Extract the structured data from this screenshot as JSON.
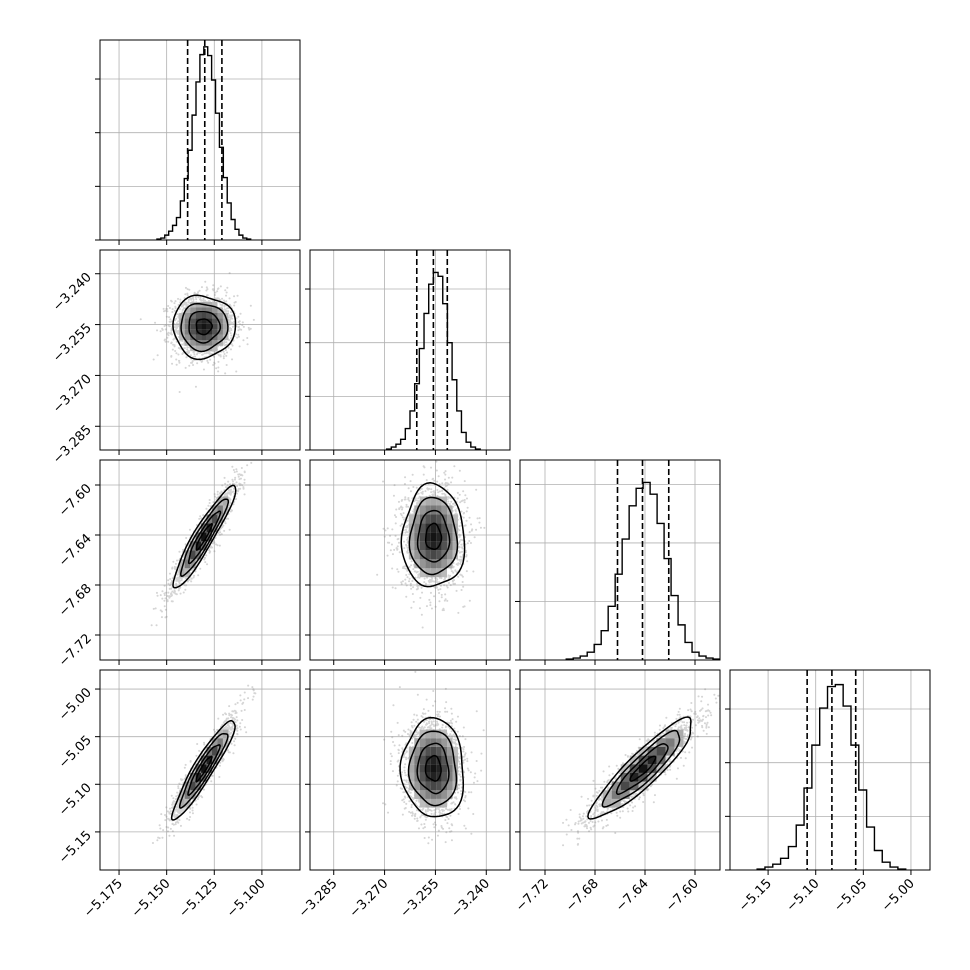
{
  "chart_data": {
    "type": "corner",
    "title": "",
    "grid": true,
    "colors": {
      "line": "#000000",
      "grid": "#b0b0b0",
      "points": "#888888",
      "background": "#ffffff"
    },
    "parameters": [
      {
        "xlim": [
          -5.185,
          -5.08
        ],
        "ticks": [
          -5.175,
          -5.15,
          -5.125,
          -5.1
        ],
        "tick_labels": [
          "−5.175",
          "−5.150",
          "−5.125",
          "−5.100"
        ],
        "quantiles": [
          -5.139,
          -5.13,
          -5.121
        ],
        "mean": -5.1305,
        "sd": 0.0082,
        "hist_counts": [
          1,
          2,
          5,
          9,
          15,
          23,
          40,
          63,
          92,
          128,
          162,
          190,
          198,
          189,
          164,
          130,
          95,
          64,
          38,
          21,
          11,
          5,
          2,
          1
        ],
        "hist_y_ticks": [
          0,
          55,
          110,
          165
        ]
      },
      {
        "xlim": [
          -3.292,
          -3.233
        ],
        "ticks": [
          -3.285,
          -3.27,
          -3.255,
          -3.24
        ],
        "tick_labels": [
          "−3.285",
          "−3.270",
          "−3.255",
          "−3.240"
        ],
        "quantiles": [
          -3.2605,
          -3.2556,
          -3.2515
        ],
        "mean": -3.2556,
        "sd": 0.0046,
        "hist_counts": [
          1,
          3,
          6,
          11,
          22,
          40,
          68,
          104,
          140,
          170,
          182,
          178,
          150,
          110,
          72,
          40,
          18,
          8,
          3,
          1
        ],
        "hist_y_ticks": [
          0,
          55,
          110,
          165
        ]
      },
      {
        "xlim": [
          -7.74,
          -7.58
        ],
        "ticks": [
          -7.72,
          -7.68,
          -7.64,
          -7.6
        ],
        "tick_labels": [
          "−7.72",
          "−7.68",
          "−7.64",
          "−7.60"
        ],
        "quantiles": [
          -7.662,
          -7.642,
          -7.621
        ],
        "mean": -7.6415,
        "sd": 0.0205,
        "hist_counts": [
          1,
          2,
          4,
          8,
          16,
          30,
          55,
          88,
          124,
          158,
          176,
          182,
          170,
          140,
          104,
          66,
          36,
          18,
          8,
          4,
          2,
          1
        ],
        "hist_y_ticks": [
          0,
          60,
          120,
          180
        ]
      },
      {
        "xlim": [
          -5.19,
          -4.98
        ],
        "ticks": [
          -5.15,
          -5.1,
          -5.05,
          -5.0
        ],
        "tick_labels": [
          "−5.15",
          "−5.10",
          "−5.05",
          "−5.00"
        ],
        "quantiles": [
          -5.109,
          -5.083,
          -5.058
        ],
        "mean": -5.0835,
        "sd": 0.026,
        "hist_counts": [
          1,
          3,
          6,
          12,
          24,
          46,
          84,
          128,
          166,
          188,
          190,
          168,
          128,
          82,
          44,
          20,
          8,
          3,
          1
        ],
        "hist_y_ticks": [
          0,
          55,
          110,
          165
        ]
      }
    ],
    "correlations": {
      "1-0": 0.0,
      "2-0": 0.93,
      "2-1": 0.0,
      "3-0": 0.93,
      "3-1": -0.05,
      "3-2": 0.9
    },
    "contour_levels_sigma": [
      0.5,
      1.0,
      1.5,
      2.0
    ]
  }
}
